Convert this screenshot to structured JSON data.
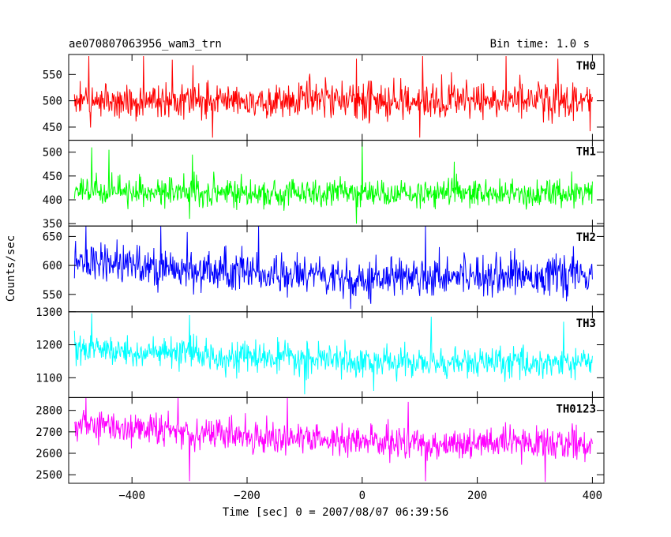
{
  "header": {
    "title": "ae070807063956_wam3_trn",
    "bin_time": "Bin time: 1.0 s"
  },
  "axes": {
    "ylabel": "Counts/sec",
    "xlabel": "Time [sec] 0 = 2007/08/07 06:39:56"
  },
  "chart_data": {
    "type": "line",
    "title": "ae070807063956_wam3_trn",
    "xlabel": "Time [sec] 0 = 2007/08/07 06:39:56",
    "ylabel": "Counts/sec",
    "xlim": [
      -510,
      420
    ],
    "x_ticks": [
      -400,
      -200,
      0,
      200,
      400
    ],
    "x_range_data": [
      -500,
      400
    ],
    "bin_time_s": 1.0,
    "grid": false,
    "panels": [
      {
        "name": "TH0",
        "color": "#ff0000",
        "ylim": [
          425,
          588
        ],
        "y_ticks": [
          450,
          500,
          550
        ],
        "mean_profile": [
          [
            -500,
            500
          ],
          [
            400,
            500
          ]
        ],
        "noise_amp": 30,
        "spikes": [
          [
            -475,
            585
          ],
          [
            -380,
            585
          ],
          [
            -330,
            578
          ],
          [
            -10,
            580
          ],
          [
            105,
            585
          ],
          [
            250,
            585
          ],
          [
            340,
            580
          ],
          [
            -260,
            430
          ],
          [
            100,
            430
          ]
        ]
      },
      {
        "name": "TH1",
        "color": "#00ff00",
        "ylim": [
          345,
          525
        ],
        "y_ticks": [
          350,
          400,
          450,
          500
        ],
        "mean_profile": [
          [
            -500,
            420
          ],
          [
            -300,
            417
          ],
          [
            -100,
            413
          ],
          [
            100,
            413
          ],
          [
            400,
            414
          ]
        ],
        "noise_amp": 25,
        "spikes": [
          [
            -470,
            510
          ],
          [
            -440,
            505
          ],
          [
            -295,
            495
          ],
          [
            0,
            522
          ],
          [
            160,
            480
          ],
          [
            -10,
            350
          ],
          [
            -300,
            360
          ]
        ]
      },
      {
        "name": "TH2",
        "color": "#0000ff",
        "ylim": [
          520,
          668
        ],
        "y_ticks": [
          550,
          600,
          650
        ],
        "mean_profile": [
          [
            -500,
            605
          ],
          [
            -350,
            597
          ],
          [
            -250,
            588
          ],
          [
            -150,
            585
          ],
          [
            0,
            580
          ],
          [
            200,
            585
          ],
          [
            400,
            582
          ]
        ],
        "noise_amp": 28,
        "spikes": [
          [
            -480,
            668
          ],
          [
            -350,
            668
          ],
          [
            -180,
            668
          ],
          [
            110,
            668
          ],
          [
            -20,
            525
          ]
        ]
      },
      {
        "name": "TH3",
        "color": "#00ffff",
        "ylim": [
          1040,
          1300
        ],
        "y_ticks": [
          1100,
          1200,
          1300
        ],
        "mean_profile": [
          [
            -500,
            1185
          ],
          [
            -300,
            1170
          ],
          [
            -100,
            1155
          ],
          [
            100,
            1145
          ],
          [
            400,
            1145
          ]
        ],
        "noise_amp": 38,
        "spikes": [
          [
            -470,
            1295
          ],
          [
            -300,
            1290
          ],
          [
            120,
            1285
          ],
          [
            350,
            1270
          ],
          [
            -100,
            1050
          ],
          [
            20,
            1060
          ]
        ]
      },
      {
        "name": "TH0123",
        "color": "#ff00ff",
        "ylim": [
          2460,
          2860
        ],
        "y_ticks": [
          2500,
          2600,
          2700,
          2800
        ],
        "mean_profile": [
          [
            -500,
            2735
          ],
          [
            -300,
            2700
          ],
          [
            -100,
            2665
          ],
          [
            100,
            2645
          ],
          [
            400,
            2645
          ]
        ],
        "noise_amp": 62,
        "spikes": [
          [
            -480,
            2860
          ],
          [
            -320,
            2860
          ],
          [
            -130,
            2860
          ],
          [
            80,
            2840
          ],
          [
            -300,
            2470
          ],
          [
            110,
            2470
          ]
        ]
      }
    ]
  }
}
